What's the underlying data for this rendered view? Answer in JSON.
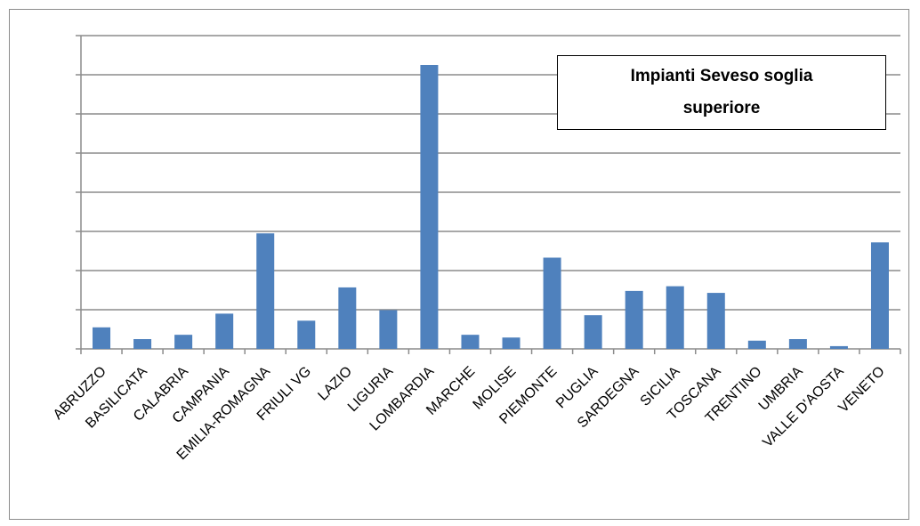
{
  "chart_data": {
    "type": "bar",
    "title": "",
    "xlabel": "",
    "ylabel": "",
    "legend": {
      "text": "Impianti Seveso soglia superiore",
      "placement": "top-right"
    },
    "categories": [
      "ABRUZZO",
      "BASILICATA",
      "CALABRIA",
      "CAMPANIA",
      "EMILIA-ROMAGNA",
      "FRIULI VG",
      "LAZIO",
      "LIGURIA",
      "LOMBARDIA",
      "MARCHE",
      "MOLISE",
      "PIEMONTE",
      "PUGLIA",
      "SARDEGNA",
      "SICILIA",
      "TOSCANA",
      "TRENTINO",
      "UMBRIA",
      "VALLE D'AOSTA",
      "VENETO"
    ],
    "values": [
      0.55,
      0.25,
      0.36,
      0.9,
      2.95,
      0.72,
      1.57,
      0.99,
      7.25,
      0.36,
      0.29,
      2.33,
      0.86,
      1.48,
      1.6,
      1.43,
      0.21,
      0.25,
      0.07,
      2.72
    ],
    "ylim": [
      0,
      8
    ],
    "yticks": [
      0,
      1,
      2,
      3,
      4,
      5,
      6,
      7,
      8
    ],
    "y_tick_labels_shown": false,
    "grid": true,
    "bar_color": "#4F81BD",
    "grid_color": "#8c8c8c",
    "axis_color": "#8c8c8c"
  }
}
